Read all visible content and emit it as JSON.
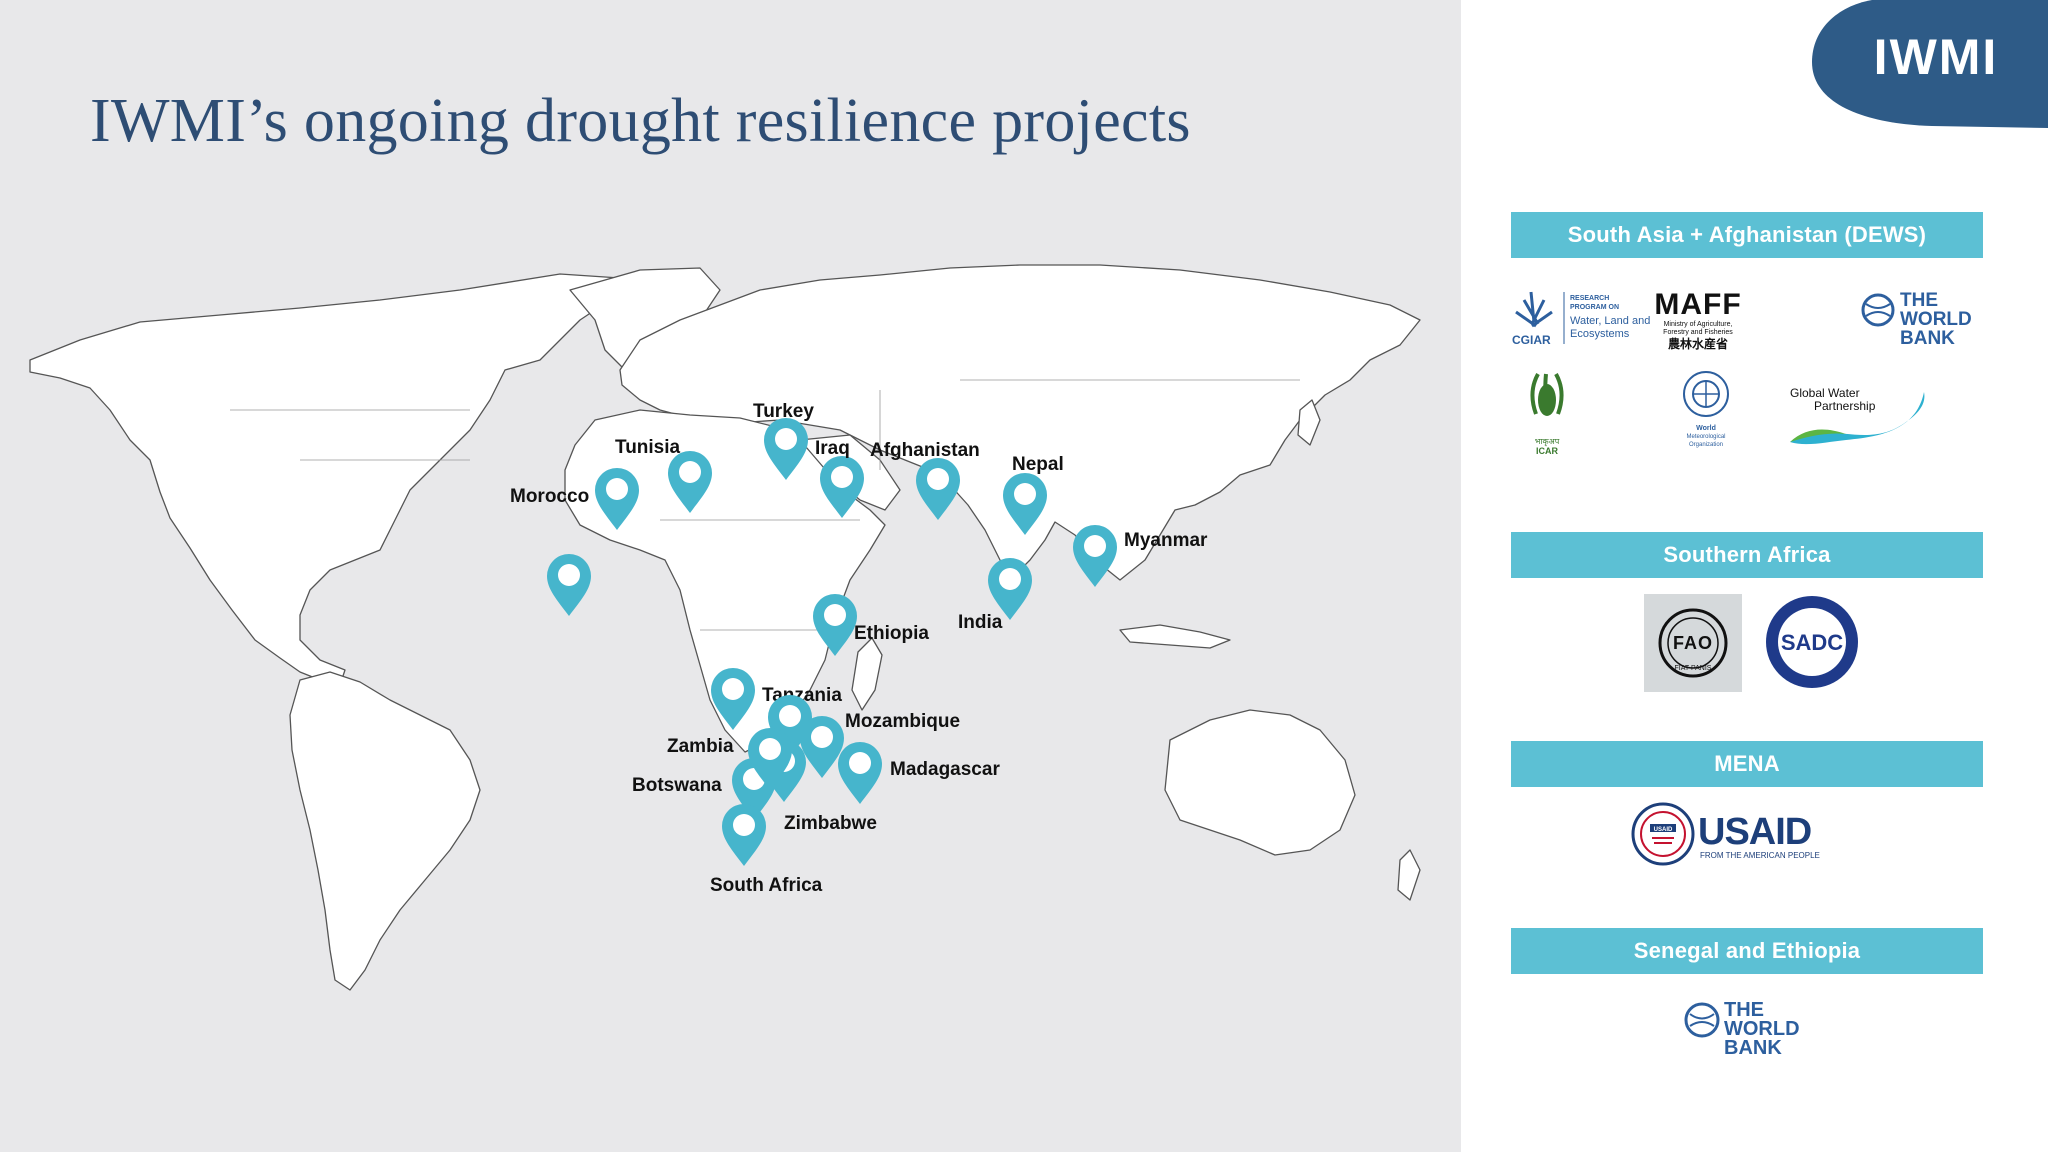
{
  "title": "IWMI’s ongoing drought resilience projects",
  "brand": {
    "logo_text": "IWMI",
    "color": "#2e4d74"
  },
  "accent_color": "#5cc0d4",
  "map": {
    "pins": [
      {
        "id": "morocco",
        "label": "Morocco"
      },
      {
        "id": "tunisia",
        "label": "Tunisia"
      },
      {
        "id": "turkey",
        "label": "Turkey"
      },
      {
        "id": "iraq",
        "label": "Iraq"
      },
      {
        "id": "afghanistan",
        "label": "Afghanistan"
      },
      {
        "id": "nepal",
        "label": "Nepal"
      },
      {
        "id": "myanmar",
        "label": "Myanmar"
      },
      {
        "id": "india",
        "label": "India"
      },
      {
        "id": "senegal",
        "label": ""
      },
      {
        "id": "ethiopia",
        "label": "Ethiopia"
      },
      {
        "id": "tanzania",
        "label": "Tanzania"
      },
      {
        "id": "mozambique",
        "label": "Mozambique"
      },
      {
        "id": "zambia",
        "label": "Zambia"
      },
      {
        "id": "madagascar",
        "label": "Madagascar"
      },
      {
        "id": "botswana",
        "label": "Botswana"
      },
      {
        "id": "zimbabwe",
        "label": "Zimbabwe"
      },
      {
        "id": "south-africa",
        "label": "South Africa"
      },
      {
        "id": "malawi",
        "label": ""
      }
    ]
  },
  "regions": [
    {
      "name": "South Asia + Afghanistan (DEWS)",
      "logos": {
        "cgiar": "CGIAR",
        "wle_line1": "RESEARCH",
        "wle_line2": "PROGRAM ON",
        "wle_line3": "Water, Land and",
        "wle_line4": "Ecosystems",
        "maff": "MAFF",
        "maff_sub1": "Ministry of Agriculture,",
        "maff_sub2": "Forestry and Fisheries",
        "maff_jp": "農林水産省",
        "wb_line1": "THE",
        "wb_line2": "WORLD",
        "wb_line3": "BANK",
        "icar": "ICAR",
        "icar_hi": "भाकृअप",
        "wmo1": "World",
        "wmo2": "Meteorological",
        "wmo3": "Organization",
        "gwp1": "Global Water",
        "gwp2": "Partnership"
      }
    },
    {
      "name": "Southern Africa",
      "logos": {
        "fao_letters": "FAO",
        "fao_motto": "FIAT PANIS",
        "sadc": "SADC"
      }
    },
    {
      "name": "MENA",
      "logos": {
        "usaid": "USAID",
        "usaid_sub": "FROM THE AMERICAN PEOPLE",
        "usaid_seal": "USAID"
      }
    },
    {
      "name": "Senegal and Ethiopia",
      "logos": {
        "wb_line1": "THE",
        "wb_line2": "WORLD",
        "wb_line3": "BANK"
      }
    }
  ]
}
